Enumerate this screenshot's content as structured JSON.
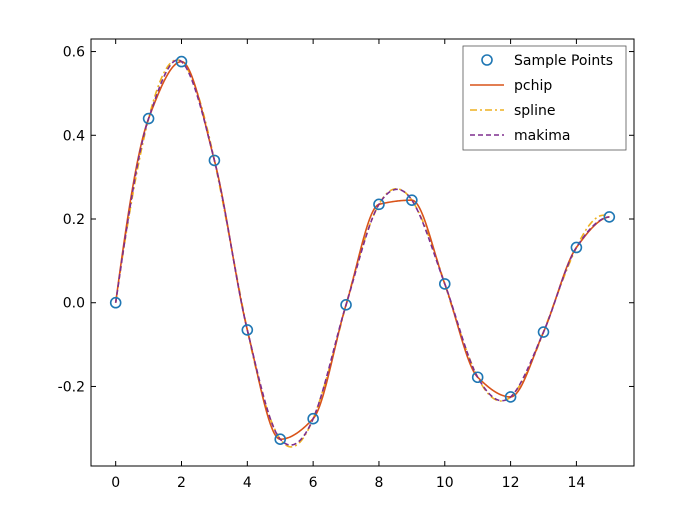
{
  "chart_data": {
    "type": "line",
    "title": "",
    "xlabel": "",
    "ylabel": "",
    "xlim": [
      -0.75,
      15.75
    ],
    "ylim": [
      -0.39,
      0.63
    ],
    "xticks": [
      0,
      2,
      4,
      6,
      8,
      10,
      12,
      14
    ],
    "yticks": [
      -0.2,
      0.0,
      0.2,
      0.4,
      0.6
    ],
    "xtick_labels": [
      "0",
      "2",
      "4",
      "6",
      "8",
      "10",
      "12",
      "14"
    ],
    "ytick_labels": [
      "-0.2",
      "0.0",
      "0.2",
      "0.4",
      "0.6"
    ],
    "grid": false,
    "legend_position": "top-right",
    "sample_points": {
      "name": "Sample Points",
      "color": "#1f77b4",
      "x": [
        0,
        1,
        2,
        3,
        4,
        5,
        6,
        7,
        8,
        9,
        10,
        11,
        12,
        13,
        14,
        15
      ],
      "y": [
        0.0,
        0.44,
        0.576,
        0.34,
        -0.065,
        -0.326,
        -0.277,
        -0.005,
        0.235,
        0.245,
        0.045,
        -0.178,
        -0.225,
        -0.07,
        0.132,
        0.205
      ]
    },
    "series": [
      {
        "name": "pchip",
        "color": "#d95319",
        "style": "solid"
      },
      {
        "name": "spline",
        "color": "#edb120",
        "style": "dashdot"
      },
      {
        "name": "makima",
        "color": "#7e2f8e",
        "style": "dashed"
      }
    ]
  }
}
